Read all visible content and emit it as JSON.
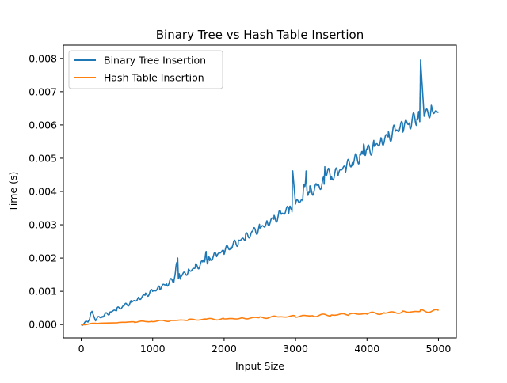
{
  "chart_data": {
    "type": "line",
    "title": "Binary Tree vs Hash Table Insertion",
    "xlabel": "Input Size",
    "ylabel": "Time (s)",
    "xlim": [
      -250,
      5250
    ],
    "ylim": [
      -0.0004,
      0.0084
    ],
    "x_ticks": [
      0,
      1000,
      2000,
      3000,
      4000,
      5000
    ],
    "y_ticks": [
      0.0,
      0.001,
      0.002,
      0.003,
      0.004,
      0.005,
      0.006,
      0.007,
      0.008
    ],
    "x_tick_labels": [
      "0",
      "1000",
      "2000",
      "3000",
      "4000",
      "5000"
    ],
    "y_tick_labels": [
      "0.000",
      "0.001",
      "0.002",
      "0.003",
      "0.004",
      "0.005",
      "0.006",
      "0.007",
      "0.008"
    ],
    "grid": false,
    "legend_position": "upper-left",
    "series": [
      {
        "name": "Binary Tree Insertion",
        "color": "#1f77b4",
        "x": [
          0,
          100,
          150,
          200,
          300,
          400,
          500,
          600,
          700,
          800,
          900,
          1000,
          1100,
          1200,
          1300,
          1350,
          1360,
          1400,
          1500,
          1600,
          1700,
          1750,
          1760,
          1800,
          1900,
          2000,
          2100,
          2200,
          2300,
          2400,
          2500,
          2600,
          2700,
          2800,
          2900,
          2950,
          2960,
          3000,
          3100,
          3150,
          3160,
          3200,
          3300,
          3400,
          3410,
          3500,
          3600,
          3700,
          3800,
          3900,
          3950,
          4000,
          4100,
          4200,
          4300,
          4400,
          4500,
          4600,
          4700,
          4740,
          4750,
          4800,
          4900,
          5000
        ],
        "y": [
          0.0,
          0.0001,
          0.0004,
          0.00016,
          0.00026,
          0.00036,
          0.00046,
          0.00056,
          0.00067,
          0.00078,
          0.00089,
          0.001,
          0.00111,
          0.00123,
          0.00135,
          0.002,
          0.00142,
          0.00147,
          0.0016,
          0.00172,
          0.00185,
          0.0021,
          0.00192,
          0.00198,
          0.0021,
          0.00222,
          0.00236,
          0.0025,
          0.00262,
          0.00277,
          0.0029,
          0.00305,
          0.00318,
          0.00332,
          0.00346,
          0.0035,
          0.00462,
          0.00362,
          0.00378,
          0.0046,
          0.00392,
          0.004,
          0.00412,
          0.00428,
          0.0047,
          0.00444,
          0.00458,
          0.00474,
          0.0049,
          0.00505,
          0.00525,
          0.0052,
          0.00536,
          0.00552,
          0.00566,
          0.00582,
          0.00597,
          0.00608,
          0.0062,
          0.0063,
          0.00795,
          0.0063,
          0.00645,
          0.0064
        ]
      },
      {
        "name": "Hash Table Insertion",
        "color": "#ff7f0e",
        "x": [
          0,
          250,
          500,
          750,
          1000,
          1250,
          1500,
          1750,
          2000,
          2250,
          2500,
          2750,
          3000,
          3250,
          3500,
          3750,
          4000,
          4250,
          4500,
          4750,
          5000
        ],
        "y": [
          0.0,
          4e-05,
          6e-05,
          8e-05,
          0.0001,
          0.00012,
          0.00014,
          0.00016,
          0.00017,
          0.00019,
          0.00021,
          0.00023,
          0.00025,
          0.00027,
          0.00029,
          0.00031,
          0.00033,
          0.00035,
          0.00038,
          0.0004,
          0.00042
        ]
      }
    ]
  }
}
